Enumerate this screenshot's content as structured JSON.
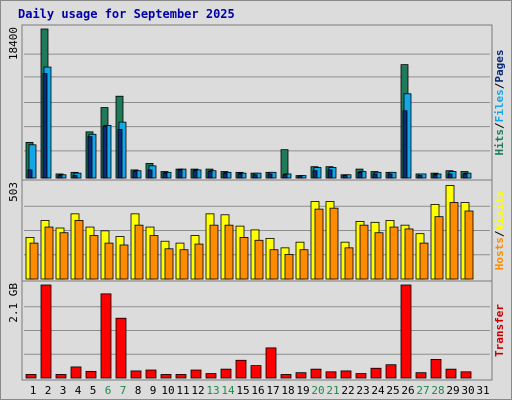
{
  "title": "Daily usage for September 2025",
  "colors": {
    "hits": "#1f7a5a",
    "files": "#12a7e8",
    "pages": "#0a2a7a",
    "visits": "#ffff00",
    "hosts": "#ff8c00",
    "transfer": "#ff0000",
    "weekend_label": "#1f8a4a",
    "weekday_label": "#000000"
  },
  "chart_data": [
    {
      "type": "bar",
      "name": "hits-files-pages",
      "ylabel_parts": [
        {
          "text": "Hits",
          "color": "#1f7a5a"
        },
        {
          "text": "/",
          "color": "#000000"
        },
        {
          "text": "Files",
          "color": "#12a7e8"
        },
        {
          "text": "/",
          "color": "#000000"
        },
        {
          "text": "Pages",
          "color": "#0a2a7a"
        }
      ],
      "y_tick_label": "18400",
      "ylim": [
        0,
        18400
      ],
      "categories": [
        "1",
        "2",
        "3",
        "4",
        "5",
        "6",
        "7",
        "8",
        "9",
        "10",
        "11",
        "12",
        "13",
        "14",
        "15",
        "16",
        "17",
        "18",
        "19",
        "20",
        "21",
        "22",
        "23",
        "24",
        "25",
        "26",
        "27",
        "28",
        "29",
        "30",
        "31"
      ],
      "series": [
        {
          "name": "Hits",
          "values": [
            4400,
            18400,
            500,
            700,
            5700,
            8700,
            10100,
            1000,
            1800,
            800,
            1100,
            1100,
            1100,
            800,
            700,
            600,
            700,
            3500,
            300,
            1400,
            1400,
            400,
            1100,
            800,
            700,
            14000,
            500,
            600,
            900,
            800,
            0
          ]
        },
        {
          "name": "Files",
          "values": [
            4100,
            13700,
            400,
            600,
            5400,
            6500,
            6900,
            900,
            1500,
            700,
            1100,
            1000,
            900,
            700,
            600,
            600,
            700,
            500,
            300,
            1300,
            1300,
            400,
            800,
            700,
            700,
            10400,
            500,
            500,
            800,
            600,
            0
          ]
        },
        {
          "name": "Pages",
          "values": [
            1000,
            12900,
            300,
            300,
            5100,
            6400,
            6000,
            800,
            1000,
            600,
            1000,
            900,
            800,
            600,
            500,
            400,
            500,
            400,
            200,
            900,
            1000,
            300,
            700,
            500,
            500,
            8300,
            300,
            400,
            500,
            500,
            0
          ]
        }
      ]
    },
    {
      "type": "bar",
      "name": "visits-hosts",
      "ylabel_parts": [
        {
          "text": "Hosts",
          "color": "#ff8c00"
        },
        {
          "text": "/",
          "color": "#000000"
        },
        {
          "text": "Visits",
          "color": "#ffff00"
        }
      ],
      "y_tick_label": "503",
      "ylim": [
        0,
        503
      ],
      "categories": [
        "1",
        "2",
        "3",
        "4",
        "5",
        "6",
        "7",
        "8",
        "9",
        "10",
        "11",
        "12",
        "13",
        "14",
        "15",
        "16",
        "17",
        "18",
        "19",
        "20",
        "21",
        "22",
        "23",
        "24",
        "25",
        "26",
        "27",
        "28",
        "29",
        "30",
        "31"
      ],
      "series": [
        {
          "name": "Visits",
          "values": [
            220,
            310,
            270,
            345,
            275,
            255,
            225,
            345,
            275,
            200,
            190,
            230,
            345,
            340,
            280,
            260,
            215,
            165,
            195,
            410,
            410,
            195,
            305,
            300,
            310,
            285,
            240,
            395,
            495,
            405,
            0
          ]
        },
        {
          "name": "Hosts",
          "values": [
            190,
            275,
            245,
            310,
            230,
            190,
            180,
            285,
            230,
            160,
            155,
            185,
            285,
            285,
            220,
            205,
            155,
            130,
            155,
            370,
            375,
            165,
            285,
            245,
            275,
            265,
            190,
            330,
            405,
            360,
            0
          ]
        }
      ]
    },
    {
      "type": "bar",
      "name": "transfer",
      "ylabel_parts": [
        {
          "text": "Transfer",
          "color": "#cc0000"
        }
      ],
      "y_tick_label": "2.1 GB",
      "ylim": [
        0,
        2.1
      ],
      "categories": [
        "1",
        "2",
        "3",
        "4",
        "5",
        "6",
        "7",
        "8",
        "9",
        "10",
        "11",
        "12",
        "13",
        "14",
        "15",
        "16",
        "17",
        "18",
        "19",
        "20",
        "21",
        "22",
        "23",
        "24",
        "25",
        "26",
        "27",
        "28",
        "29",
        "30",
        "31"
      ],
      "series": [
        {
          "name": "Transfer",
          "values": [
            0.08,
            2.1,
            0.08,
            0.25,
            0.15,
            1.9,
            1.35,
            0.16,
            0.18,
            0.08,
            0.08,
            0.18,
            0.1,
            0.2,
            0.4,
            0.28,
            0.68,
            0.08,
            0.12,
            0.2,
            0.14,
            0.16,
            0.1,
            0.22,
            0.3,
            2.1,
            0.12,
            0.42,
            0.2,
            0.14,
            0
          ]
        }
      ]
    }
  ],
  "weekend_days": [
    "6",
    "7",
    "13",
    "14",
    "20",
    "21",
    "27",
    "28"
  ]
}
